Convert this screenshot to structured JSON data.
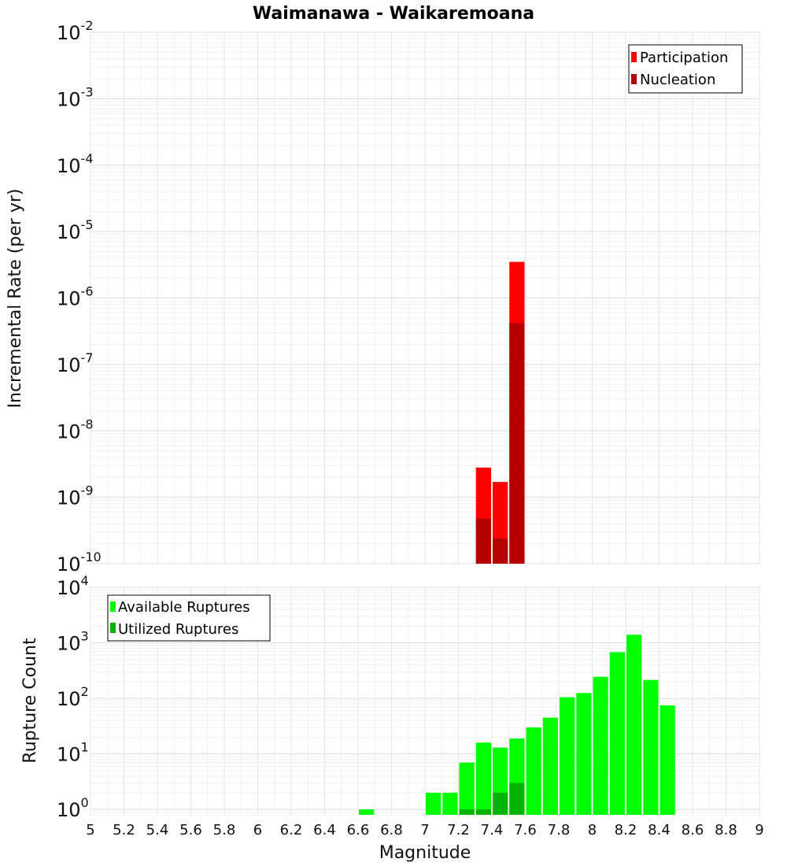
{
  "chart_data": [
    {
      "type": "bar",
      "title": "Waimanawa - Waikaremoana",
      "ylabel": "Incremental Rate (per yr)",
      "xlabel": "",
      "xlim": [
        5,
        9
      ],
      "ylim": [
        1e-10,
        0.01
      ],
      "yscale": "log",
      "y_tick_exponents": [
        -2,
        -3,
        -4,
        -5,
        -6,
        -7,
        -8,
        -9,
        -10
      ],
      "grid": true,
      "legend_position": "top-right",
      "bar_width": 0.1,
      "series": [
        {
          "name": "Participation",
          "color": "#ff0000",
          "points": [
            {
              "x": 7.35,
              "y": 2.8e-09
            },
            {
              "x": 7.45,
              "y": 1.7e-09
            },
            {
              "x": 7.55,
              "y": 3.5e-06
            }
          ]
        },
        {
          "name": "Nucleation",
          "color": "#b40000",
          "points": [
            {
              "x": 7.35,
              "y": 4.8e-10
            },
            {
              "x": 7.45,
              "y": 2.4e-10
            },
            {
              "x": 7.55,
              "y": 4.2e-07
            }
          ]
        }
      ]
    },
    {
      "type": "bar",
      "title": "",
      "ylabel": "Rupture Count",
      "xlabel": "Magnitude",
      "xlim": [
        5,
        9
      ],
      "ylim": [
        0.8,
        10000
      ],
      "yscale": "log",
      "y_tick_exponents": [
        4,
        3,
        2,
        1,
        0
      ],
      "x_ticks": [
        "5",
        "5.2",
        "5.4",
        "5.6",
        "5.8",
        "6",
        "6.2",
        "6.4",
        "6.6",
        "6.8",
        "7",
        "7.2",
        "7.4",
        "7.6",
        "7.8",
        "8",
        "8.2",
        "8.4",
        "8.6",
        "8.8",
        "9"
      ],
      "grid": true,
      "legend_position": "top-left",
      "bar_width": 0.1,
      "series": [
        {
          "name": "Available Ruptures",
          "color": "#00ff00",
          "points": [
            {
              "x": 6.65,
              "y": 1
            },
            {
              "x": 7.05,
              "y": 2
            },
            {
              "x": 7.15,
              "y": 2
            },
            {
              "x": 7.25,
              "y": 7
            },
            {
              "x": 7.35,
              "y": 16
            },
            {
              "x": 7.45,
              "y": 13
            },
            {
              "x": 7.55,
              "y": 19
            },
            {
              "x": 7.65,
              "y": 30
            },
            {
              "x": 7.75,
              "y": 45
            },
            {
              "x": 7.85,
              "y": 105
            },
            {
              "x": 7.95,
              "y": 125
            },
            {
              "x": 8.05,
              "y": 245
            },
            {
              "x": 8.15,
              "y": 680
            },
            {
              "x": 8.25,
              "y": 1400
            },
            {
              "x": 8.35,
              "y": 215
            },
            {
              "x": 8.45,
              "y": 75
            }
          ]
        },
        {
          "name": "Utilized Ruptures",
          "color": "#00b400",
          "points": [
            {
              "x": 7.25,
              "y": 1
            },
            {
              "x": 7.35,
              "y": 1
            },
            {
              "x": 7.45,
              "y": 2
            },
            {
              "x": 7.55,
              "y": 3
            }
          ]
        }
      ]
    }
  ]
}
